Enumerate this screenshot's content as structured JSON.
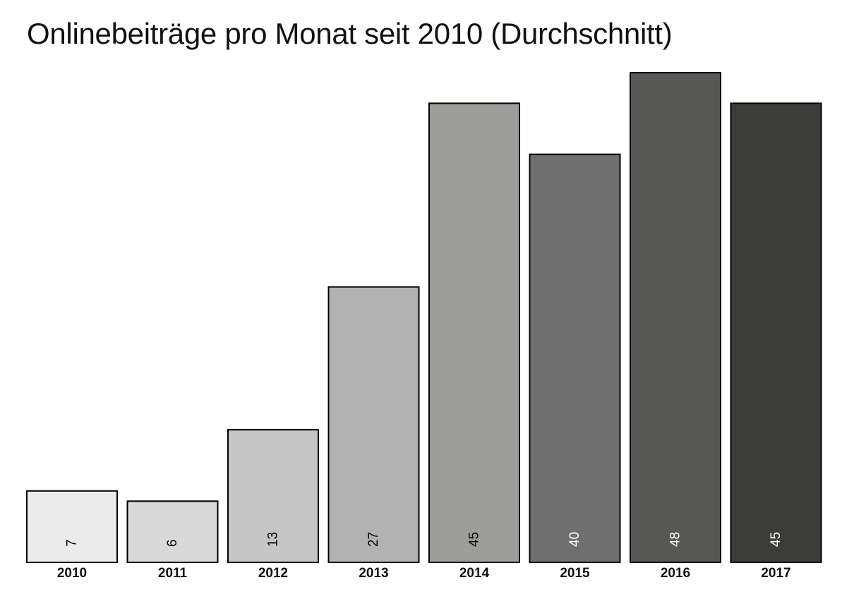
{
  "chart_data": {
    "type": "bar",
    "title": "Onlinebeiträge pro Monat seit 2010 (Durchschnitt)",
    "categories": [
      "2010",
      "2011",
      "2012",
      "2013",
      "2014",
      "2015",
      "2016",
      "2017"
    ],
    "values": [
      7,
      6,
      13,
      27,
      45,
      40,
      48,
      45
    ],
    "colors": [
      "#ebebeb",
      "#d9d9d9",
      "#c6c6c6",
      "#b2b2b2",
      "#9d9d9c",
      "#706f6f",
      "#575756",
      "#3c3c3b"
    ],
    "label_colors": [
      "#000000",
      "#000000",
      "#000000",
      "#000000",
      "#000000",
      "#ffffff",
      "#ffffff",
      "#ffffff"
    ],
    "xlabel": "",
    "ylabel": "",
    "ylim": [
      0,
      48
    ],
    "grid": false,
    "legend": "none",
    "data_labels": "rotated inside bar bottom"
  }
}
